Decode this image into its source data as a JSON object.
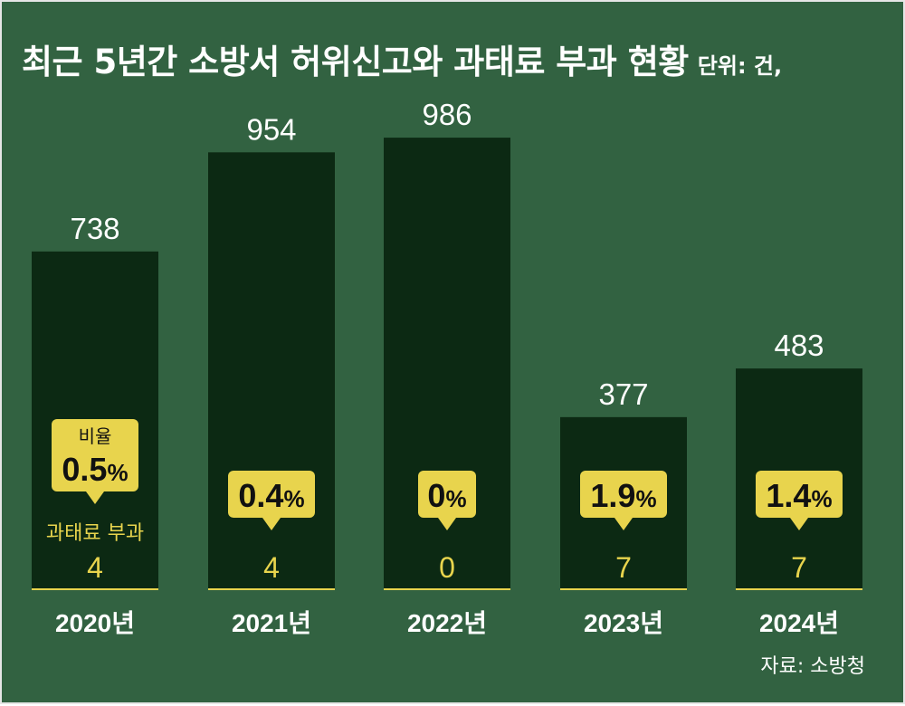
{
  "title": "최근 5년간 소방서 허위신고와 과태료 부과 현황",
  "unit": "단위: 건,",
  "source": "자료: 소방청",
  "callout_caption": "비율",
  "fine_label": "과태료 부과",
  "colors": {
    "background": "#326241",
    "bar": "#0c2913",
    "callout": "#e8d44d",
    "fine_text": "#e8d44d",
    "text": "#ffffff"
  },
  "chart_data": {
    "type": "bar",
    "title": "최근 5년간 소방서 허위신고와 과태료 부과 현황",
    "unit": "건",
    "categories": [
      "2020년",
      "2021년",
      "2022년",
      "2023년",
      "2024년"
    ],
    "series": [
      {
        "name": "허위신고",
        "values": [
          738,
          954,
          986,
          377,
          483
        ]
      },
      {
        "name": "과태료 부과",
        "values": [
          4,
          4,
          0,
          7,
          7
        ]
      }
    ],
    "ratio_labels": [
      "0.5",
      "0.4",
      "0",
      "1.9",
      "1.4"
    ],
    "ratio_unit": "%",
    "ylim": [
      0,
      1200
    ]
  }
}
